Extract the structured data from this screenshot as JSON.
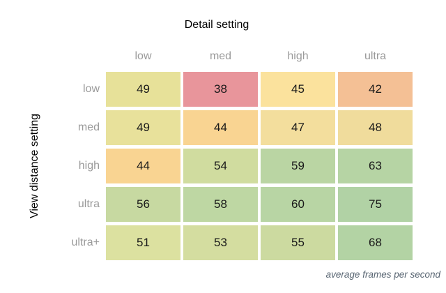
{
  "title": "Detail setting",
  "y_axis_label": "View distance setting",
  "caption": "average frames per second",
  "colors": {
    "background": "#ffffff",
    "title_text": "#000000",
    "axis_label_text": "#000000",
    "tick_label_gray": "#9a9a9a",
    "cell_text": "#1a1a1a",
    "caption_text": "#596673",
    "low_fps_red": "#e8959b",
    "mid_fps_yellow": "#fbe29d",
    "high_fps_green": "#b1d2a5"
  },
  "chart_data": {
    "type": "heatmap",
    "title": "Detail setting",
    "xlabel": "Detail setting",
    "ylabel": "View distance setting",
    "annotation": "average frames per second",
    "legend_position": "none",
    "grid": false,
    "columns": [
      "low",
      "med",
      "high",
      "ultra"
    ],
    "rows": [
      "low",
      "med",
      "high",
      "ultra",
      "ultra+"
    ],
    "values": [
      [
        49,
        38,
        45,
        42
      ],
      [
        49,
        44,
        47,
        48
      ],
      [
        44,
        54,
        59,
        63
      ],
      [
        56,
        58,
        60,
        75
      ],
      [
        51,
        53,
        55,
        68
      ]
    ],
    "cell_colors": [
      [
        "#e7e199",
        "#e8959b",
        "#fbe29d",
        "#f4c095"
      ],
      [
        "#e8e19b",
        "#f9d492",
        "#f3de9d",
        "#f0dc9c"
      ],
      [
        "#f9d492",
        "#d0dc9f",
        "#bad5a3",
        "#b6d4a4"
      ],
      [
        "#c7d9a1",
        "#bed7a3",
        "#b8d5a4",
        "#b1d2a5"
      ],
      [
        "#dce1a0",
        "#d4dda0",
        "#ccdaa0",
        "#b3d3a4"
      ]
    ]
  }
}
